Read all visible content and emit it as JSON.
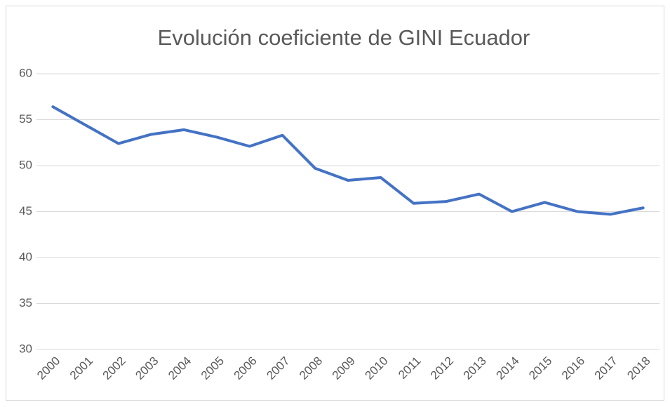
{
  "chart_data": {
    "type": "line",
    "title": "Evolución coeficiente de GINI Ecuador",
    "categories": [
      "2000",
      "2001",
      "2002",
      "2003",
      "2004",
      "2005",
      "2006",
      "2007",
      "2008",
      "2009",
      "2010",
      "2011",
      "2012",
      "2013",
      "2014",
      "2015",
      "2016",
      "2017",
      "2018"
    ],
    "series": [
      {
        "name": "GINI",
        "color": "#4472c4",
        "values": [
          56.4,
          54.4,
          52.4,
          53.4,
          53.9,
          53.1,
          52.1,
          53.3,
          49.7,
          48.4,
          48.7,
          45.9,
          46.1,
          46.9,
          45.0,
          46.0,
          45.0,
          44.7,
          45.4
        ]
      }
    ],
    "ylim": [
      30,
      60
    ],
    "yticks": [
      30,
      35,
      40,
      45,
      50,
      55,
      60
    ],
    "grid": true
  }
}
